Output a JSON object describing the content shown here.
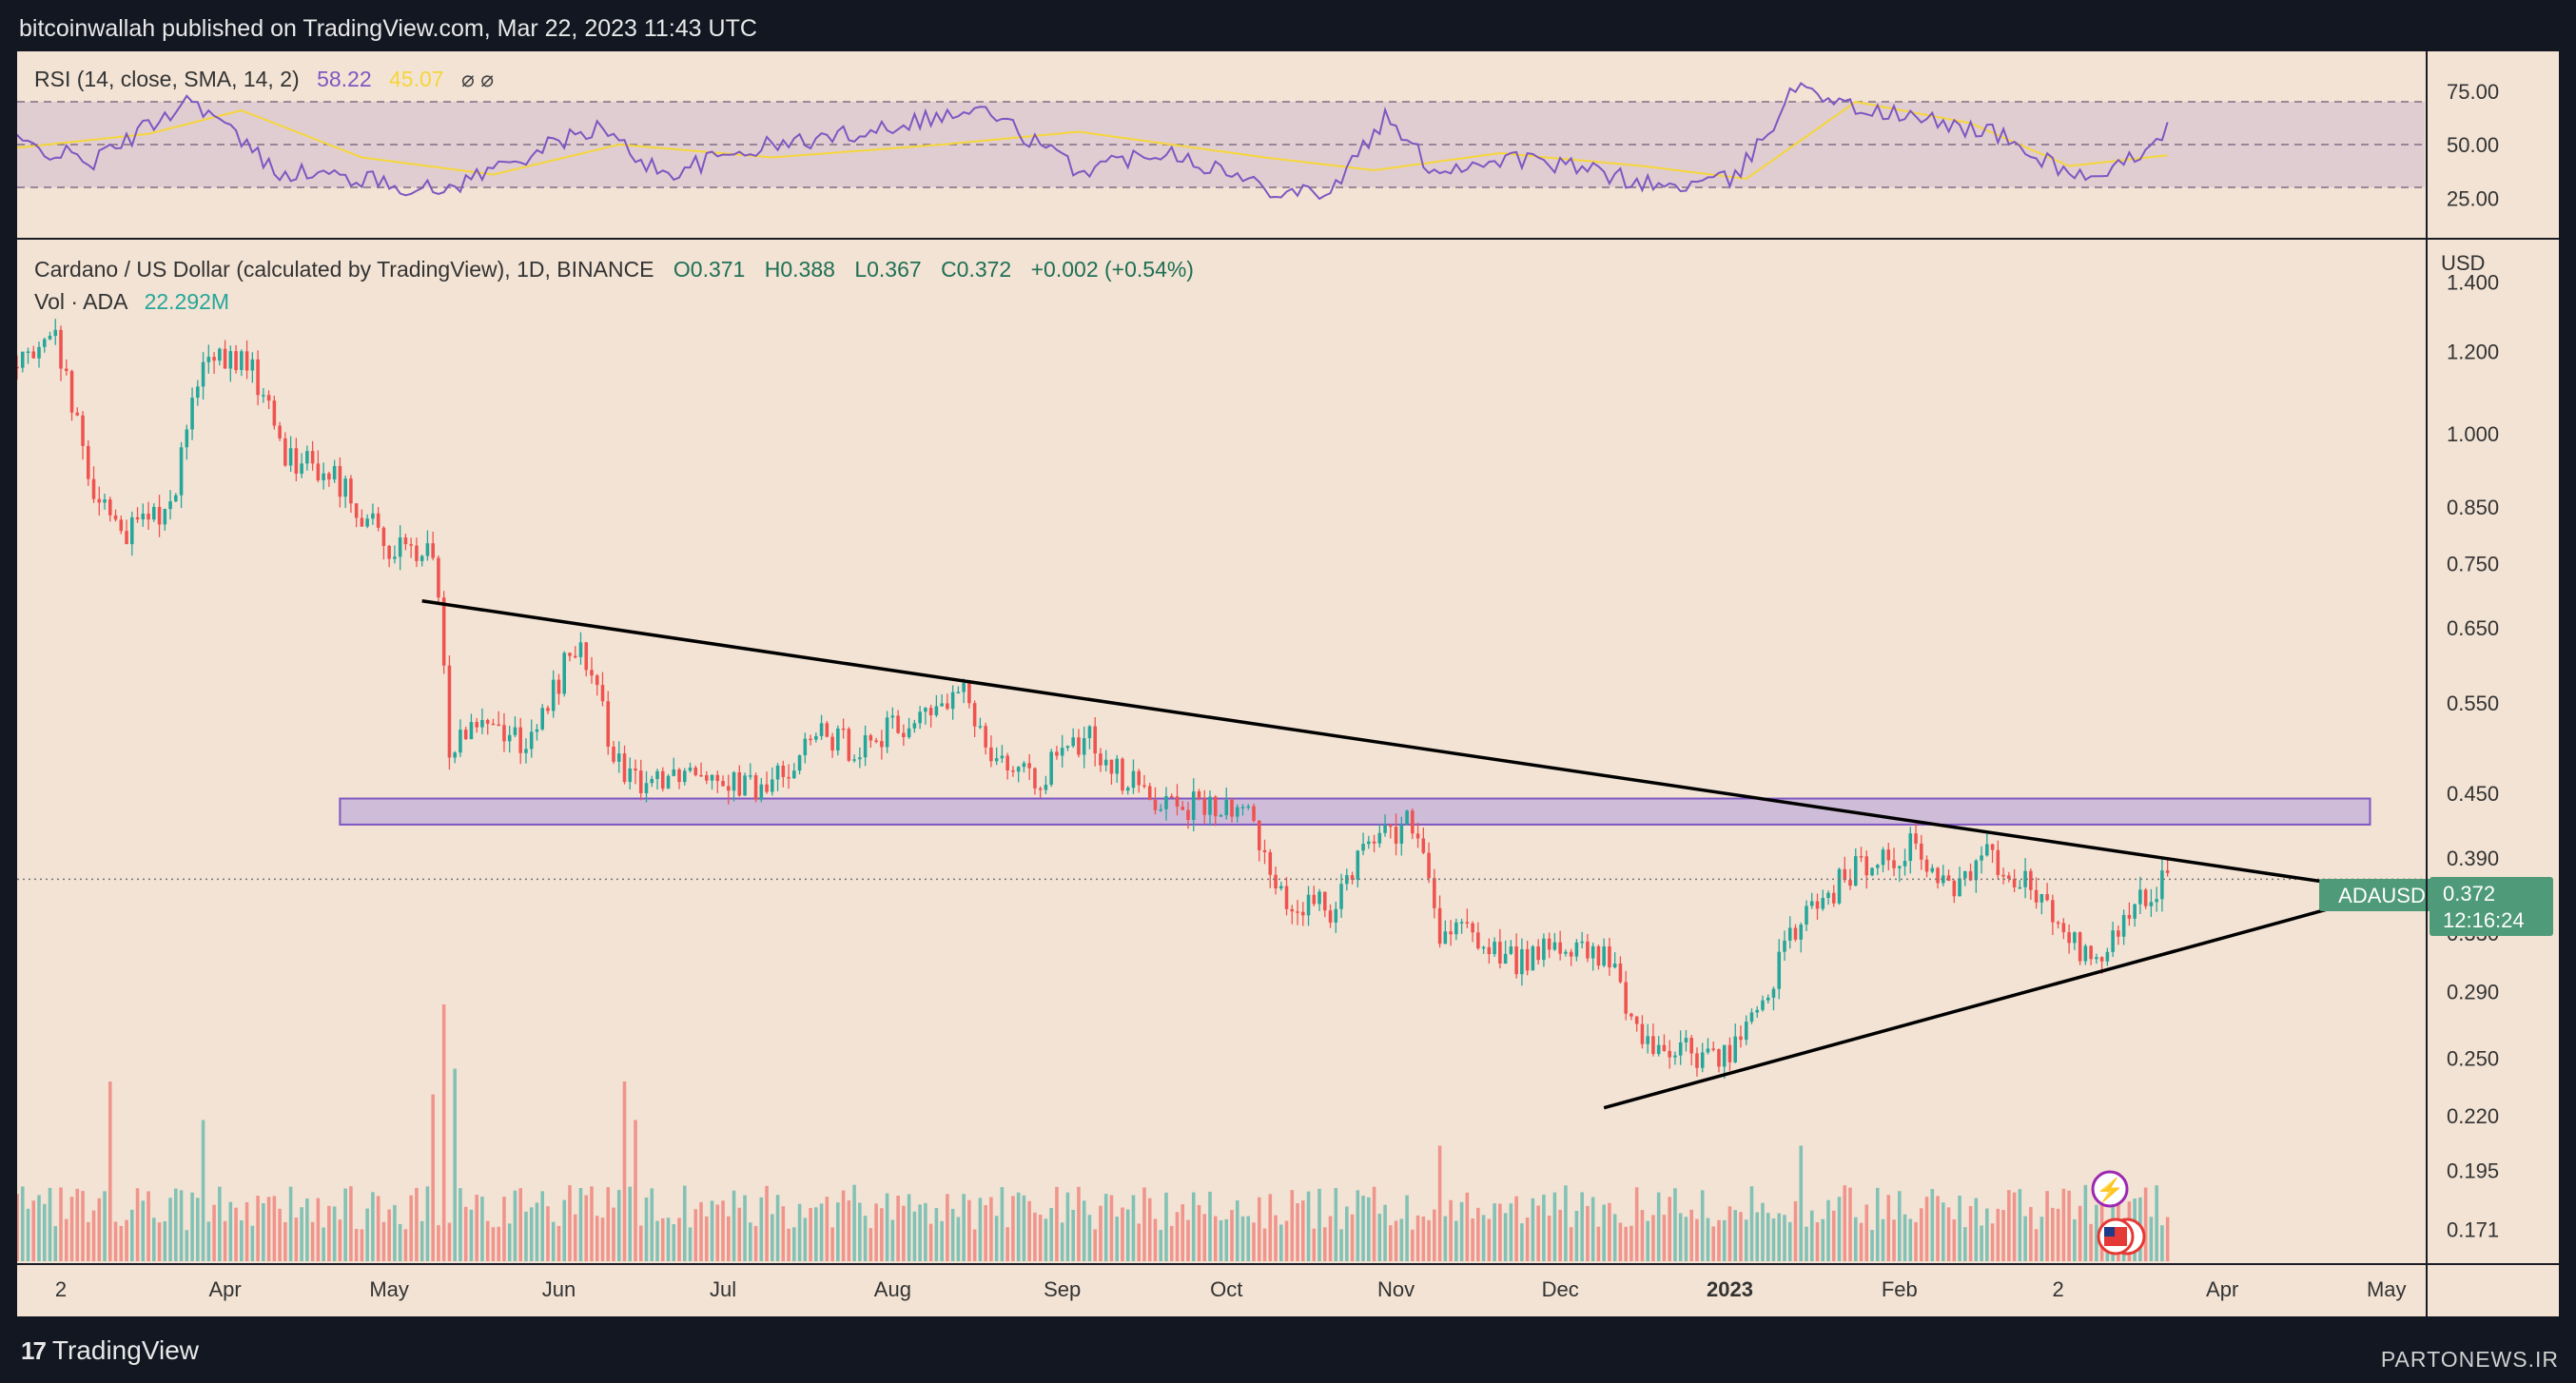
{
  "header": {
    "published": "bitcoinwallah published on TradingView.com, Mar 22, 2023 11:43 UTC"
  },
  "rsi_panel": {
    "title": "RSI (14, close, SMA, 14, 2)",
    "rsi_value": "58.22",
    "sma_value": "45.07",
    "extra_icons": "⌀ ⌀",
    "levels": [
      "75.00",
      "50.00",
      "25.00"
    ],
    "colors": {
      "rsi": "#7e57c2",
      "sma": "#f5d63b",
      "band": "#d9c6d0"
    }
  },
  "price_panel": {
    "title": "Cardano / US Dollar (calculated by TradingView), 1D, BINANCE",
    "open": "O0.371",
    "high": "H0.388",
    "low": "L0.367",
    "close": "C0.372",
    "change": "+0.002 (+0.54%)",
    "volume_label": "Vol · ADA",
    "volume_value": "22.292M",
    "currency": "USD",
    "symbol_tag": "ADAUSD",
    "last_price": "0.372",
    "countdown": "12:16:24",
    "colors": {
      "up": "#26a69a",
      "down": "#ef5350",
      "zone": "#b39ddb",
      "tag": "#4f9a78"
    }
  },
  "footer": {
    "brand": "TradingView",
    "watermark": "PARTONEWS.IR"
  },
  "chart_data": [
    {
      "type": "line",
      "title": "RSI (14, close, SMA, 14, 2)",
      "ylim": [
        10,
        90
      ],
      "y_ticks": [
        75,
        50,
        25
      ],
      "bands": [
        30,
        50,
        70
      ],
      "series": [
        {
          "name": "RSI",
          "x": [
            "2022-02-20",
            "2022-03-08",
            "2022-03-26",
            "2022-04-10",
            "2022-04-26",
            "2022-05-10",
            "2022-05-25",
            "2022-06-08",
            "2022-06-20",
            "2022-07-06",
            "2022-07-22",
            "2022-08-06",
            "2022-08-18",
            "2022-09-04",
            "2022-09-20",
            "2022-10-08",
            "2022-10-20",
            "2022-10-30",
            "2022-11-08",
            "2022-11-22",
            "2022-12-06",
            "2022-12-20",
            "2023-01-02",
            "2023-01-14",
            "2023-01-22",
            "2023-02-04",
            "2023-02-18",
            "2023-02-26",
            "2023-03-10",
            "2023-03-22"
          ],
          "values": [
            52,
            42,
            72,
            38,
            34,
            28,
            44,
            58,
            36,
            48,
            54,
            62,
            66,
            38,
            48,
            30,
            28,
            62,
            38,
            44,
            38,
            30,
            34,
            80,
            68,
            62,
            56,
            44,
            32,
            58
          ]
        },
        {
          "name": "RSI-based MA",
          "x": [
            "2022-02-20",
            "2022-03-18",
            "2022-04-04",
            "2022-04-26",
            "2022-05-20",
            "2022-06-12",
            "2022-07-10",
            "2022-08-10",
            "2022-09-04",
            "2022-10-08",
            "2022-10-28",
            "2022-11-20",
            "2022-12-16",
            "2023-01-04",
            "2023-01-24",
            "2023-02-14",
            "2023-03-04",
            "2023-03-22"
          ],
          "values": [
            48,
            55,
            66,
            44,
            36,
            50,
            44,
            50,
            56,
            44,
            38,
            46,
            40,
            34,
            70,
            60,
            40,
            45
          ]
        }
      ]
    },
    {
      "type": "candlestick",
      "title": "Cardano / US Dollar (calculated by TradingView), 1D, BINANCE",
      "ylabel": "USD",
      "scale": "log",
      "ylim": [
        0.16,
        1.5
      ],
      "y_ticks": [
        "1.400",
        "1.200",
        "1.000",
        "0.850",
        "0.750",
        "0.650",
        "0.550",
        "0.450",
        "0.390",
        "0.330",
        "0.290",
        "0.250",
        "0.220",
        "0.195",
        "0.171"
      ],
      "x_ticks": [
        {
          "date": "2022-03-02",
          "label": "2"
        },
        {
          "date": "2022-04-01",
          "label": "Apr"
        },
        {
          "date": "2022-05-01",
          "label": "May"
        },
        {
          "date": "2022-06-01",
          "label": "Jun"
        },
        {
          "date": "2022-07-01",
          "label": "Jul"
        },
        {
          "date": "2022-08-01",
          "label": "Aug"
        },
        {
          "date": "2022-09-01",
          "label": "Sep"
        },
        {
          "date": "2022-10-01",
          "label": "Oct"
        },
        {
          "date": "2022-11-01",
          "label": "Nov"
        },
        {
          "date": "2022-12-01",
          "label": "Dec"
        },
        {
          "date": "2023-01-01",
          "label": "2023"
        },
        {
          "date": "2023-02-01",
          "label": "Feb"
        },
        {
          "date": "2023-03-02",
          "label": "2"
        },
        {
          "date": "2023-04-01",
          "label": "Apr"
        },
        {
          "date": "2023-05-01",
          "label": "May"
        }
      ],
      "x_range": [
        "2022-02-22",
        "2023-05-08"
      ],
      "close_path": {
        "x": [
          "2022-02-22",
          "2022-03-01",
          "2022-03-07",
          "2022-03-14",
          "2022-03-22",
          "2022-03-28",
          "2022-04-05",
          "2022-04-12",
          "2022-04-22",
          "2022-04-30",
          "2022-05-09",
          "2022-05-12",
          "2022-05-17",
          "2022-05-27",
          "2022-06-04",
          "2022-06-13",
          "2022-06-27",
          "2022-07-08",
          "2022-07-18",
          "2022-07-25",
          "2022-08-06",
          "2022-08-14",
          "2022-08-19",
          "2022-08-26",
          "2022-09-06",
          "2022-09-13",
          "2022-09-22",
          "2022-10-05",
          "2022-10-12",
          "2022-10-20",
          "2022-10-27",
          "2022-11-04",
          "2022-11-09",
          "2022-11-14",
          "2022-11-22",
          "2022-12-01",
          "2022-12-10",
          "2022-12-16",
          "2022-12-30",
          "2023-01-05",
          "2023-01-14",
          "2023-01-24",
          "2023-02-03",
          "2023-02-11",
          "2023-02-16",
          "2023-02-24",
          "2023-03-05",
          "2023-03-10",
          "2023-03-16",
          "2023-03-22"
        ],
        "values": [
          1.16,
          1.22,
          0.9,
          0.8,
          0.85,
          1.16,
          1.18,
          0.96,
          0.9,
          0.78,
          0.76,
          0.5,
          0.54,
          0.5,
          0.63,
          0.46,
          0.48,
          0.45,
          0.51,
          0.5,
          0.53,
          0.56,
          0.5,
          0.46,
          0.51,
          0.46,
          0.44,
          0.43,
          0.35,
          0.35,
          0.41,
          0.42,
          0.33,
          0.33,
          0.31,
          0.32,
          0.31,
          0.26,
          0.25,
          0.27,
          0.34,
          0.38,
          0.4,
          0.36,
          0.4,
          0.37,
          0.32,
          0.31,
          0.35,
          0.372
        ]
      },
      "volume_spikes": [
        {
          "date": "2022-03-11",
          "value": 0.7
        },
        {
          "date": "2022-03-28",
          "value": 0.55
        },
        {
          "date": "2022-05-09",
          "value": 0.65
        },
        {
          "date": "2022-05-11",
          "value": 1.0
        },
        {
          "date": "2022-05-13",
          "value": 0.75
        },
        {
          "date": "2022-06-13",
          "value": 0.7
        },
        {
          "date": "2022-06-15",
          "value": 0.55
        },
        {
          "date": "2022-11-09",
          "value": 0.45
        },
        {
          "date": "2023-01-14",
          "value": 0.45
        }
      ],
      "resistance_zone": {
        "low": 0.42,
        "high": 0.445,
        "from": "2022-04-22",
        "to": "2023-04-28"
      },
      "trendlines": [
        {
          "points": [
            [
              "2022-05-07",
              0.69
            ],
            [
              "2023-04-27",
              0.365
            ]
          ]
        },
        {
          "points": [
            [
              "2022-12-09",
              0.224
            ],
            [
              "2023-04-27",
              0.356
            ]
          ]
        }
      ],
      "last_price": 0.372
    }
  ]
}
